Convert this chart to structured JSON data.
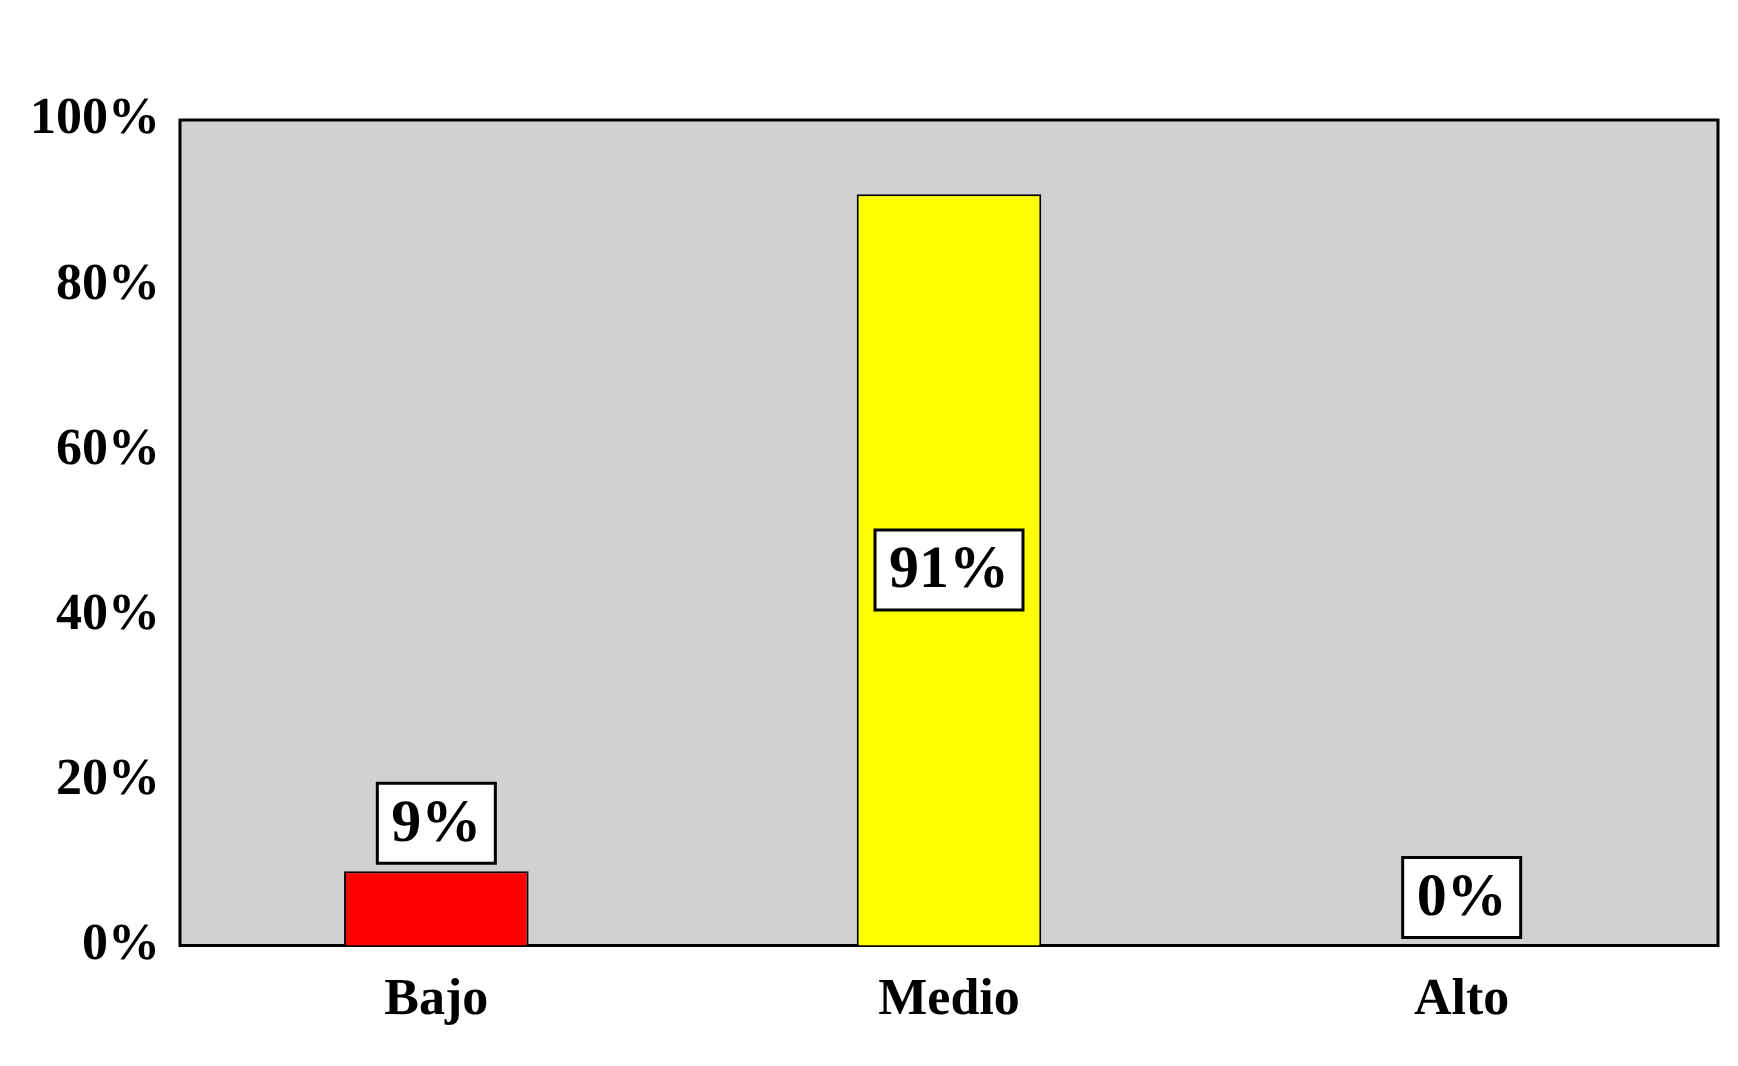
{
  "chart_data": {
    "type": "bar",
    "categories": [
      "Bajo",
      "Medio",
      "Alto"
    ],
    "values": [
      9,
      91,
      0
    ],
    "colors": [
      "#ff0000",
      "#ffff00",
      "#0066a6"
    ],
    "value_labels": [
      "9%",
      "91%",
      "0%"
    ],
    "ylim": [
      0,
      100
    ],
    "yticks": [
      {
        "value": 0,
        "label": "0%"
      },
      {
        "value": 20,
        "label": "20%"
      },
      {
        "value": 40,
        "label": "40%"
      },
      {
        "value": 60,
        "label": "60%"
      },
      {
        "value": 80,
        "label": "80%"
      },
      {
        "value": 100,
        "label": "100%"
      }
    ]
  }
}
